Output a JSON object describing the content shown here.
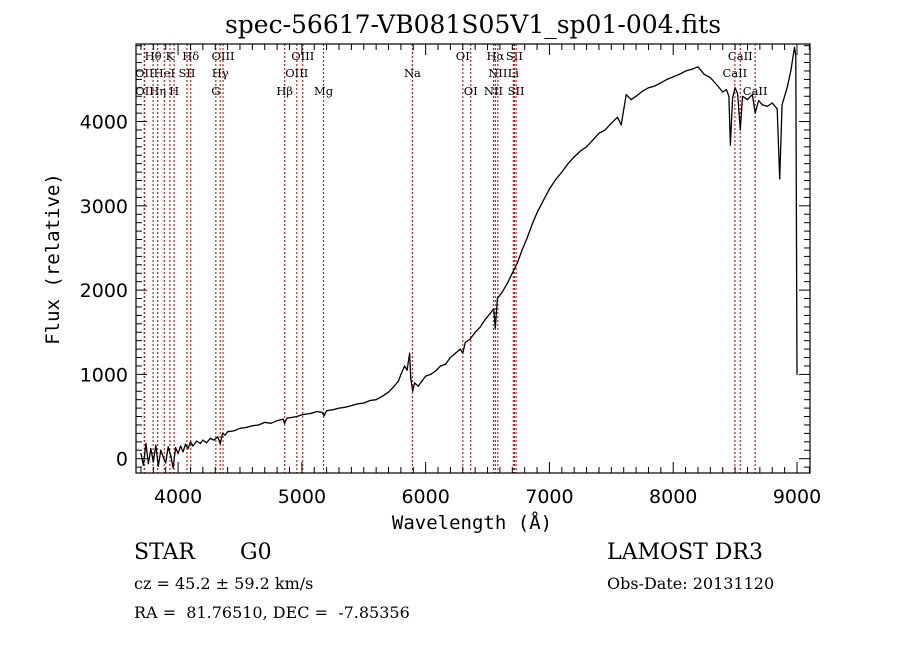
{
  "chart_data": {
    "type": "line",
    "title": "spec-56617-VB081S05V1_sp01-004.fits",
    "xlabel": "Wavelength (Å)",
    "ylabel": "Flux (relative)",
    "xlim": [
      3660,
      9105
    ],
    "ylim": [
      -170,
      4920
    ],
    "x_ticks": [
      4000,
      5000,
      6000,
      7000,
      8000,
      9000
    ],
    "x_tick_labels": [
      "4000",
      "5000",
      "6000",
      "7000",
      "8000",
      "9000"
    ],
    "y_ticks": [
      0,
      1000,
      2000,
      3000,
      4000
    ],
    "y_tick_labels": [
      "0",
      "1000",
      "2000",
      "3000",
      "4000"
    ],
    "grid": false,
    "series": [
      {
        "name": "spectrum",
        "color": "#000000",
        "points": [
          [
            3700,
            60
          ],
          [
            3720,
            -80
          ],
          [
            3740,
            180
          ],
          [
            3760,
            -60
          ],
          [
            3780,
            120
          ],
          [
            3800,
            -40
          ],
          [
            3820,
            160
          ],
          [
            3840,
            -90
          ],
          [
            3860,
            100
          ],
          [
            3880,
            20
          ],
          [
            3900,
            -50
          ],
          [
            3920,
            140
          ],
          [
            3940,
            40
          ],
          [
            3960,
            -110
          ],
          [
            3980,
            130
          ],
          [
            4000,
            60
          ],
          [
            4020,
            150
          ],
          [
            4040,
            80
          ],
          [
            4060,
            170
          ],
          [
            4080,
            120
          ],
          [
            4100,
            200
          ],
          [
            4120,
            150
          ],
          [
            4150,
            210
          ],
          [
            4180,
            180
          ],
          [
            4200,
            220
          ],
          [
            4230,
            190
          ],
          [
            4260,
            240
          ],
          [
            4290,
            220
          ],
          [
            4320,
            260
          ],
          [
            4340,
            180
          ],
          [
            4360,
            300
          ],
          [
            4380,
            280
          ],
          [
            4400,
            320
          ],
          [
            4450,
            330
          ],
          [
            4500,
            360
          ],
          [
            4550,
            370
          ],
          [
            4600,
            390
          ],
          [
            4650,
            400
          ],
          [
            4700,
            430
          ],
          [
            4750,
            420
          ],
          [
            4800,
            450
          ],
          [
            4850,
            470
          ],
          [
            4860,
            420
          ],
          [
            4880,
            480
          ],
          [
            4920,
            490
          ],
          [
            4960,
            500
          ],
          [
            5000,
            520
          ],
          [
            5040,
            530
          ],
          [
            5080,
            540
          ],
          [
            5120,
            560
          ],
          [
            5160,
            550
          ],
          [
            5180,
            510
          ],
          [
            5200,
            570
          ],
          [
            5250,
            580
          ],
          [
            5300,
            600
          ],
          [
            5350,
            610
          ],
          [
            5400,
            630
          ],
          [
            5450,
            650
          ],
          [
            5500,
            660
          ],
          [
            5550,
            690
          ],
          [
            5600,
            700
          ],
          [
            5650,
            740
          ],
          [
            5700,
            790
          ],
          [
            5740,
            850
          ],
          [
            5780,
            920
          ],
          [
            5800,
            1000
          ],
          [
            5830,
            1100
          ],
          [
            5850,
            1050
          ],
          [
            5870,
            1250
          ],
          [
            5880,
            950
          ],
          [
            5895,
            800
          ],
          [
            5910,
            900
          ],
          [
            5940,
            860
          ],
          [
            5970,
            920
          ],
          [
            6000,
            980
          ],
          [
            6040,
            1000
          ],
          [
            6080,
            1040
          ],
          [
            6120,
            1100
          ],
          [
            6160,
            1120
          ],
          [
            6200,
            1200
          ],
          [
            6240,
            1250
          ],
          [
            6280,
            1300
          ],
          [
            6300,
            1250
          ],
          [
            6320,
            1380
          ],
          [
            6360,
            1420
          ],
          [
            6400,
            1500
          ],
          [
            6440,
            1560
          ],
          [
            6480,
            1650
          ],
          [
            6520,
            1720
          ],
          [
            6550,
            1780
          ],
          [
            6563,
            1550
          ],
          [
            6580,
            1900
          ],
          [
            6620,
            1980
          ],
          [
            6660,
            2080
          ],
          [
            6700,
            2200
          ],
          [
            6740,
            2320
          ],
          [
            6780,
            2480
          ],
          [
            6820,
            2620
          ],
          [
            6860,
            2780
          ],
          [
            6900,
            2920
          ],
          [
            6950,
            3060
          ],
          [
            7000,
            3200
          ],
          [
            7050,
            3310
          ],
          [
            7100,
            3400
          ],
          [
            7150,
            3500
          ],
          [
            7200,
            3580
          ],
          [
            7250,
            3650
          ],
          [
            7300,
            3700
          ],
          [
            7350,
            3780
          ],
          [
            7400,
            3860
          ],
          [
            7450,
            3900
          ],
          [
            7500,
            3980
          ],
          [
            7550,
            4050
          ],
          [
            7580,
            3960
          ],
          [
            7620,
            4320
          ],
          [
            7660,
            4260
          ],
          [
            7700,
            4300
          ],
          [
            7750,
            4360
          ],
          [
            7800,
            4400
          ],
          [
            7850,
            4420
          ],
          [
            7900,
            4460
          ],
          [
            7950,
            4500
          ],
          [
            8000,
            4530
          ],
          [
            8050,
            4560
          ],
          [
            8100,
            4600
          ],
          [
            8150,
            4620
          ],
          [
            8200,
            4650
          ],
          [
            8250,
            4560
          ],
          [
            8300,
            4520
          ],
          [
            8350,
            4440
          ],
          [
            8400,
            4350
          ],
          [
            8430,
            4380
          ],
          [
            8450,
            4300
          ],
          [
            8462,
            3720
          ],
          [
            8480,
            4280
          ],
          [
            8500,
            4400
          ],
          [
            8520,
            4330
          ],
          [
            8542,
            3900
          ],
          [
            8560,
            4300
          ],
          [
            8600,
            4260
          ],
          [
            8640,
            4320
          ],
          [
            8662,
            4100
          ],
          [
            8690,
            4250
          ],
          [
            8720,
            4200
          ],
          [
            8760,
            4180
          ],
          [
            8800,
            4220
          ],
          [
            8840,
            4150
          ],
          [
            8860,
            3320
          ],
          [
            8880,
            4200
          ],
          [
            8920,
            4400
          ],
          [
            8950,
            4600
          ],
          [
            8980,
            4880
          ],
          [
            8990,
            4780
          ],
          [
            9000,
            1000
          ]
        ]
      }
    ],
    "line_markers": {
      "color": "#b22222",
      "style": "dotted",
      "lines": [
        {
          "label": "Hθ",
          "wavelength": 3798,
          "row": 0
        },
        {
          "label": "K",
          "wavelength": 3934,
          "row": 0
        },
        {
          "label": "Hδ",
          "wavelength": 4102,
          "row": 0
        },
        {
          "label": "OIII",
          "wavelength": 4363,
          "row": 0
        },
        {
          "label": "OIII",
          "wavelength": 5007,
          "row": 0
        },
        {
          "label": "OI",
          "wavelength": 6300,
          "row": 0
        },
        {
          "label": "Hα",
          "wavelength": 6563,
          "row": 0
        },
        {
          "label": "SII",
          "wavelength": 6717,
          "row": 0
        },
        {
          "label": "CaII",
          "wavelength": 8542,
          "row": 0
        },
        {
          "label": "OII",
          "wavelength": 3727,
          "row": 1
        },
        {
          "label": "HeI",
          "wavelength": 3889,
          "row": 1
        },
        {
          "label": "SII",
          "wavelength": 4072,
          "row": 1
        },
        {
          "label": "Hγ",
          "wavelength": 4340,
          "row": 1
        },
        {
          "label": "OIII",
          "wavelength": 4959,
          "row": 1
        },
        {
          "label": "Na",
          "wavelength": 5893,
          "row": 1
        },
        {
          "label": "NII",
          "wavelength": 6583,
          "row": 1
        },
        {
          "label": "Li",
          "wavelength": 6708,
          "row": 1
        },
        {
          "label": "CaII",
          "wavelength": 8498,
          "row": 1
        },
        {
          "label": "OII",
          "wavelength": 3729,
          "row": 2
        },
        {
          "label": "Hη",
          "wavelength": 3835,
          "row": 2
        },
        {
          "label": "H",
          "wavelength": 3968,
          "row": 2
        },
        {
          "label": "G",
          "wavelength": 4305,
          "row": 2
        },
        {
          "label": "Hβ",
          "wavelength": 4861,
          "row": 2
        },
        {
          "label": "Mg",
          "wavelength": 5175,
          "row": 2
        },
        {
          "label": "OI",
          "wavelength": 6364,
          "row": 2
        },
        {
          "label": "NII",
          "wavelength": 6548,
          "row": 2
        },
        {
          "label": "SII",
          "wavelength": 6731,
          "row": 2
        },
        {
          "label": "CaII",
          "wavelength": 8662,
          "row": 2
        }
      ]
    }
  },
  "info": {
    "object_class": "STAR",
    "subclass": "G0",
    "survey": "LAMOST DR3",
    "redshift_text": "cz = 45.2 ± 59.2 km/s",
    "obs_date_text": "Obs-Date: 20131120",
    "coords_text": "RA =  81.76510, DEC =  -7.85356"
  }
}
